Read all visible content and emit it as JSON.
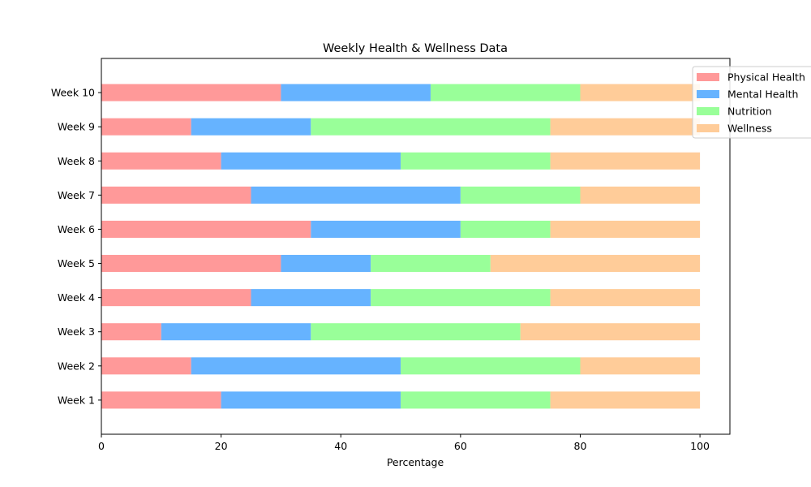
{
  "chart_data": {
    "type": "bar",
    "orientation": "horizontal",
    "stacked": true,
    "title": "Weekly Health & Wellness Data",
    "xlabel": "Percentage",
    "ylabel": "",
    "xlim": [
      0,
      105
    ],
    "xticks": [
      0,
      20,
      40,
      60,
      80,
      100
    ],
    "grid": false,
    "legend_position": "top-right",
    "categories": [
      "Week 1",
      "Week 2",
      "Week 3",
      "Week 4",
      "Week 5",
      "Week 6",
      "Week 7",
      "Week 8",
      "Week 9",
      "Week 10"
    ],
    "series": [
      {
        "name": "Physical Health",
        "color": "#ff9999",
        "values": [
          20,
          15,
          10,
          25,
          30,
          35,
          25,
          20,
          15,
          30
        ]
      },
      {
        "name": "Mental Health",
        "color": "#66b3ff",
        "values": [
          30,
          35,
          25,
          20,
          15,
          25,
          35,
          30,
          20,
          25
        ]
      },
      {
        "name": "Nutrition",
        "color": "#99ff99",
        "values": [
          25,
          30,
          35,
          30,
          20,
          15,
          20,
          25,
          40,
          25
        ]
      },
      {
        "name": "Wellness",
        "color": "#ffcc99",
        "values": [
          25,
          20,
          30,
          25,
          35,
          25,
          20,
          25,
          25,
          20
        ]
      }
    ]
  }
}
